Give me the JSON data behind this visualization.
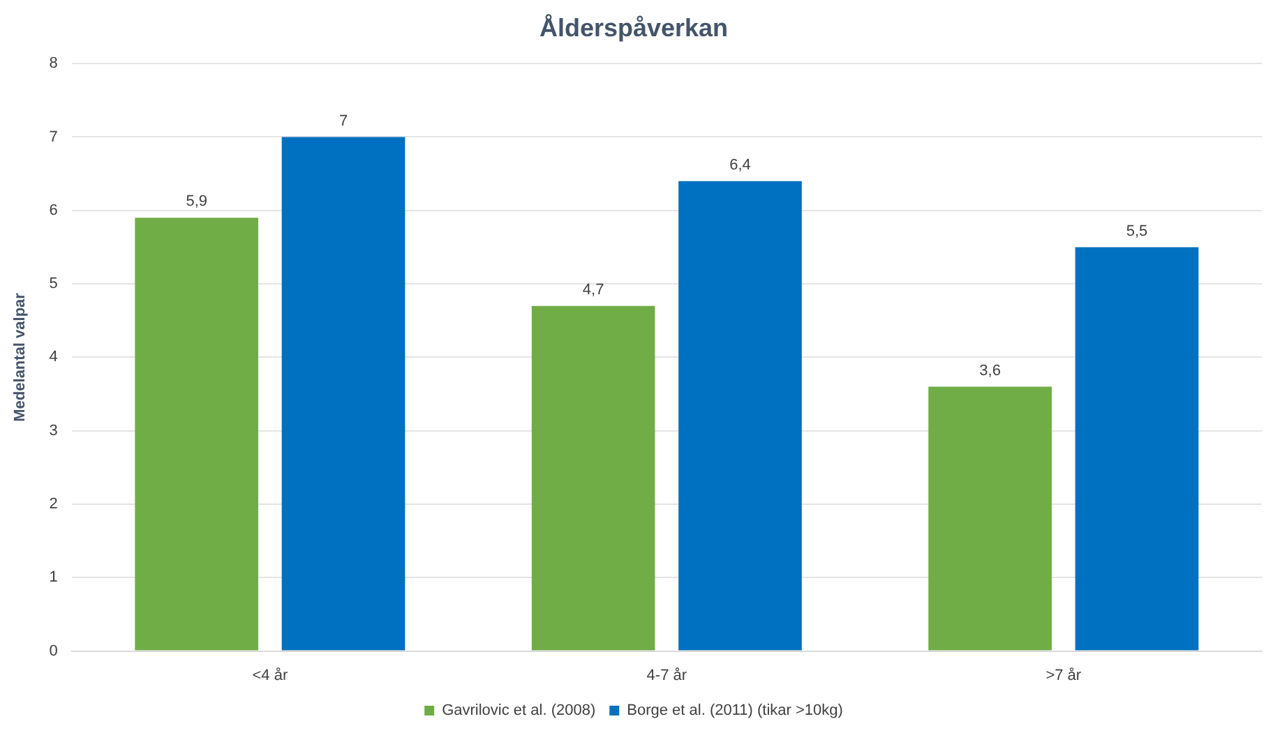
{
  "chart_data": {
    "type": "bar",
    "title": "Ålderspåverkan",
    "ylabel": "Medelantal valpar",
    "categories": [
      "<4 år",
      "4-7 år",
      ">7 år"
    ],
    "series": [
      {
        "name": "Gavrilovic et al. (2008)",
        "color": "#70ad47",
        "values": [
          5.9,
          4.7,
          3.6
        ],
        "value_labels": [
          "5,9",
          "4,7",
          "3,6"
        ]
      },
      {
        "name": "Borge et al. (2011) (tikar >10kg)",
        "color": "#0070c0",
        "values": [
          7,
          6.4,
          5.5
        ],
        "value_labels": [
          "7",
          "6,4",
          "5,5"
        ]
      }
    ],
    "ylim": [
      0,
      8
    ],
    "yticks": [
      0,
      1,
      2,
      3,
      4,
      5,
      6,
      7,
      8
    ],
    "grid": "y",
    "legend": "bottom"
  }
}
